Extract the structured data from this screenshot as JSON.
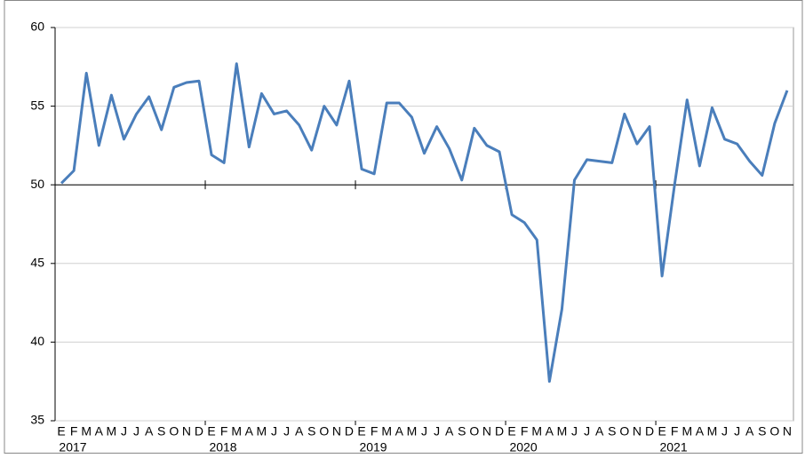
{
  "chart_data": {
    "type": "line",
    "categories": [
      "E",
      "F",
      "M",
      "A",
      "M",
      "J",
      "J",
      "A",
      "S",
      "O",
      "N",
      "D",
      "E",
      "F",
      "M",
      "A",
      "M",
      "J",
      "J",
      "A",
      "S",
      "O",
      "N",
      "D",
      "E",
      "F",
      "M",
      "A",
      "M",
      "J",
      "J",
      "A",
      "S",
      "O",
      "N",
      "D",
      "E",
      "F",
      "M",
      "A",
      "M",
      "J",
      "J",
      "A",
      "S",
      "O",
      "N",
      "D",
      "E",
      "F",
      "M",
      "A",
      "M",
      "J",
      "J",
      "A",
      "S",
      "O",
      "N"
    ],
    "year_labels": [
      "2017",
      "2018",
      "2019",
      "2020",
      "2021"
    ],
    "series": [
      {
        "color": "#4a7ebb",
        "values": [
          50.1,
          50.9,
          57.1,
          52.5,
          55.7,
          52.9,
          54.5,
          55.6,
          53.5,
          56.2,
          56.5,
          56.6,
          51.9,
          51.4,
          57.7,
          52.4,
          55.8,
          54.5,
          54.7,
          53.8,
          52.2,
          55.0,
          53.8,
          56.6,
          51.0,
          50.7,
          55.2,
          55.2,
          54.3,
          52.0,
          53.7,
          52.3,
          50.3,
          53.6,
          52.5,
          52.1,
          48.1,
          47.6,
          46.5,
          37.5,
          42.1,
          50.3,
          51.6,
          51.5,
          51.4,
          54.5,
          52.6,
          53.7,
          44.2,
          50.0,
          55.4,
          51.2,
          54.9,
          52.9,
          52.6,
          51.5,
          50.6,
          53.9,
          56.0
        ]
      }
    ],
    "ylim": [
      35,
      60
    ],
    "yticks": [
      35,
      40,
      45,
      50,
      55,
      60
    ],
    "x_axis_crosses": 50,
    "grid": true
  }
}
